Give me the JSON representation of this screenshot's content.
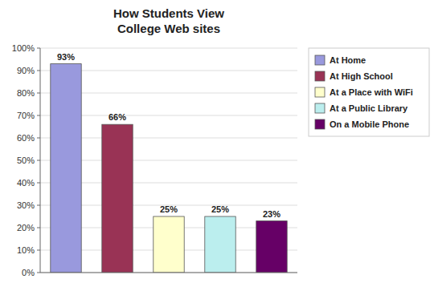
{
  "chart_data": {
    "type": "bar",
    "title": "How Students View\nCollege Web sites",
    "categories": [
      "At Home",
      "At High School",
      "At a Place with WiFi",
      "At a Public Library",
      "On a Mobile Phone"
    ],
    "values": [
      93,
      66,
      25,
      25,
      23
    ],
    "value_labels": [
      "93%",
      "66%",
      "25%",
      "25%",
      "23%"
    ],
    "colors": [
      "#9999dd",
      "#993355",
      "#ffffcc",
      "#bbeeee",
      "#660066"
    ],
    "ylim": [
      0,
      100
    ],
    "yticks": [
      {
        "value": 0,
        "label": "0%"
      },
      {
        "value": 10,
        "label": "10%"
      },
      {
        "value": 20,
        "label": "20%"
      },
      {
        "value": 30,
        "label": "30%"
      },
      {
        "value": 40,
        "label": "40%"
      },
      {
        "value": 50,
        "label": "50%"
      },
      {
        "value": 60,
        "label": "60%"
      },
      {
        "value": 70,
        "label": "70%"
      },
      {
        "value": 80,
        "label": "80%"
      },
      {
        "value": 90,
        "label": "90%"
      },
      {
        "value": 100,
        "label": "100%"
      }
    ],
    "grid": true,
    "legend": "right",
    "data_labels": true,
    "tick_labels": "y"
  }
}
